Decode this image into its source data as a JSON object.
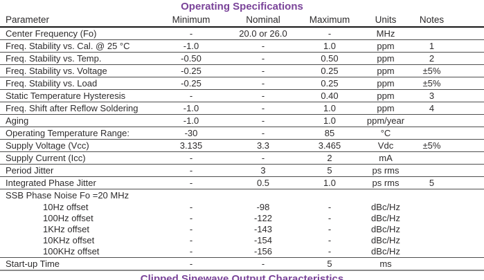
{
  "page": {
    "title": "Operating Specifications",
    "next_section_heading": "Clipped Sinewave Output Characteristics"
  },
  "colors": {
    "accent_heading": "#7a4399",
    "body_text": "#2d2b2c",
    "grid_line": "#4d4d4d",
    "header_rule": "#161616",
    "bottom_rule": "#8a8a8a"
  },
  "table": {
    "columns": [
      "Parameter",
      "Minimum",
      "Nominal",
      "Maximum",
      "Units",
      "Notes"
    ],
    "rows": [
      {
        "type": "data",
        "param": "Center Frequency (Fo)",
        "min": "-",
        "nom": "20.0 or 26.0",
        "max": "-",
        "units": "MHz",
        "notes": ""
      },
      {
        "type": "data",
        "param": "Freq. Stability vs. Cal. @ 25 °C",
        "min": "-1.0",
        "nom": "-",
        "max": "1.0",
        "units": "ppm",
        "notes": "1"
      },
      {
        "type": "data",
        "param": "Freq. Stability vs. Temp.",
        "min": "-0.50",
        "nom": "-",
        "max": "0.50",
        "units": "ppm",
        "notes": "2"
      },
      {
        "type": "data",
        "param": "Freq. Stability vs. Voltage",
        "min": "-0.25",
        "nom": "-",
        "max": "0.25",
        "units": "ppm",
        "notes": "±5%"
      },
      {
        "type": "data",
        "param": "Freq. Stability vs. Load",
        "min": "-0.25",
        "nom": "-",
        "max": "0.25",
        "units": "ppm",
        "notes": "±5%"
      },
      {
        "type": "data",
        "param": "Static Temperature Hysteresis",
        "min": "-",
        "nom": "-",
        "max": "0.40",
        "units": "ppm",
        "notes": "3"
      },
      {
        "type": "data",
        "param": "Freq. Shift after Reflow Soldering",
        "min": "-1.0",
        "nom": "-",
        "max": "1.0",
        "units": "ppm",
        "notes": "4"
      },
      {
        "type": "data",
        "param": "Aging",
        "min": "-1.0",
        "nom": "-",
        "max": "1.0",
        "units": "ppm/year",
        "notes": ""
      },
      {
        "type": "data",
        "param": "Operating Temperature Range:",
        "min": "-30",
        "nom": "-",
        "max": "85",
        "units": "°C",
        "notes": ""
      },
      {
        "type": "data",
        "param": "Supply Voltage (Vcc)",
        "min": "3.135",
        "nom": "3.3",
        "max": "3.465",
        "units": "Vdc",
        "notes": "±5%"
      },
      {
        "type": "data",
        "param": "Supply Current (Icc)",
        "min": "-",
        "nom": "-",
        "max": "2",
        "units": "mA",
        "notes": ""
      },
      {
        "type": "data",
        "param": "Period Jitter",
        "min": "-",
        "nom": "3",
        "max": "5",
        "units": "ps rms",
        "notes": ""
      },
      {
        "type": "data",
        "param": "Integrated Phase Jitter",
        "min": "-",
        "nom": "0.5",
        "max": "1.0",
        "units": "ps rms",
        "notes": "5"
      },
      {
        "type": "group",
        "param": "SSB Phase Noise Fo =20 MHz",
        "min": "",
        "nom": "",
        "max": "",
        "units": "",
        "notes": ""
      },
      {
        "type": "sub",
        "param": "10Hz offset",
        "min": "-",
        "nom": "-98",
        "max": "-",
        "units": "dBc/Hz",
        "notes": ""
      },
      {
        "type": "sub",
        "param": "100Hz offset",
        "min": "-",
        "nom": "-122",
        "max": "-",
        "units": "dBc/Hz",
        "notes": ""
      },
      {
        "type": "sub",
        "param": "1KHz offset",
        "min": "-",
        "nom": "-143",
        "max": "-",
        "units": "dBc/Hz",
        "notes": ""
      },
      {
        "type": "sub",
        "param": "10KHz offset",
        "min": "-",
        "nom": "-154",
        "max": "-",
        "units": "dBc/Hz",
        "notes": ""
      },
      {
        "type": "sub",
        "param": "100KHz offset",
        "min": "-",
        "nom": "-156",
        "max": "-",
        "units": "dBc/Hz",
        "notes": ""
      },
      {
        "type": "last",
        "param": "Start-up Time",
        "min": "-",
        "nom": "-",
        "max": "5",
        "units": "ms",
        "notes": ""
      }
    ]
  }
}
